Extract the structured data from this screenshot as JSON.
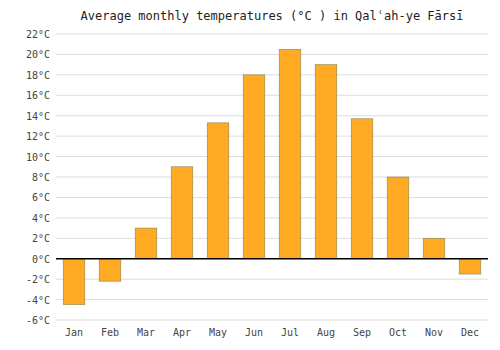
{
  "chart_data": {
    "type": "bar",
    "title": "Average monthly temperatures (°C ) in Qalʿah-ye Fārsī",
    "categories": [
      "Jan",
      "Feb",
      "Mar",
      "Apr",
      "May",
      "Jun",
      "Jul",
      "Aug",
      "Sep",
      "Oct",
      "Nov",
      "Dec"
    ],
    "values": [
      -4.5,
      -2.2,
      3.0,
      9.0,
      13.3,
      18.0,
      20.5,
      19.0,
      13.7,
      8.0,
      2.0,
      -1.5
    ],
    "color": "#FFAA22",
    "ylim": [
      -6,
      22
    ],
    "yticks": [
      {
        "value": -6,
        "label": "-6°C"
      },
      {
        "value": -4,
        "label": "-4°C"
      },
      {
        "value": -2,
        "label": "-2°C"
      },
      {
        "value": 0,
        "label": "0°C"
      },
      {
        "value": 2,
        "label": "2°C"
      },
      {
        "value": 4,
        "label": "4°C"
      },
      {
        "value": 6,
        "label": "6°C"
      },
      {
        "value": 8,
        "label": "8°C"
      },
      {
        "value": 10,
        "label": "10°C"
      },
      {
        "value": 12,
        "label": "12°C"
      },
      {
        "value": 14,
        "label": "14°C"
      },
      {
        "value": 16,
        "label": "16°C"
      },
      {
        "value": 18,
        "label": "18°C"
      },
      {
        "value": 20,
        "label": "20°C"
      },
      {
        "value": 22,
        "label": "22°C"
      }
    ],
    "grid": true
  }
}
